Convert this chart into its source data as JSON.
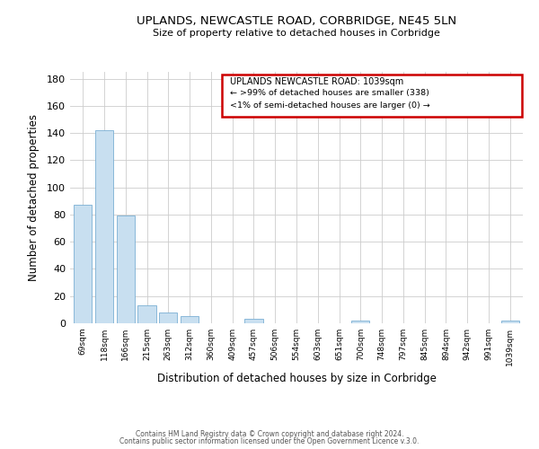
{
  "title": "UPLANDS, NEWCASTLE ROAD, CORBRIDGE, NE45 5LN",
  "subtitle": "Size of property relative to detached houses in Corbridge",
  "xlabel": "Distribution of detached houses by size in Corbridge",
  "ylabel": "Number of detached properties",
  "bar_color": "#c8dff0",
  "bar_edge_color": "#7aafd4",
  "tick_labels": [
    "69sqm",
    "118sqm",
    "166sqm",
    "215sqm",
    "263sqm",
    "312sqm",
    "360sqm",
    "409sqm",
    "457sqm",
    "506sqm",
    "554sqm",
    "603sqm",
    "651sqm",
    "700sqm",
    "748sqm",
    "797sqm",
    "845sqm",
    "894sqm",
    "942sqm",
    "991sqm",
    "1039sqm"
  ],
  "bin_values": [
    87,
    142,
    79,
    13,
    8,
    5,
    0,
    0,
    3,
    0,
    0,
    0,
    0,
    2,
    0,
    0,
    0,
    0,
    0,
    0,
    2
  ],
  "ylim": [
    0,
    185
  ],
  "yticks": [
    0,
    20,
    40,
    60,
    80,
    100,
    120,
    140,
    160,
    180
  ],
  "annotation_title": "UPLANDS NEWCASTLE ROAD: 1039sqm",
  "annotation_line1": "← >99% of detached houses are smaller (338)",
  "annotation_line2": "<1% of semi-detached houses are larger (0) →",
  "annotation_box_color": "#cc0000",
  "footer1": "Contains HM Land Registry data © Crown copyright and database right 2024.",
  "footer2": "Contains public sector information licensed under the Open Government Licence v.3.0.",
  "background_color": "#ffffff",
  "grid_color": "#cccccc"
}
